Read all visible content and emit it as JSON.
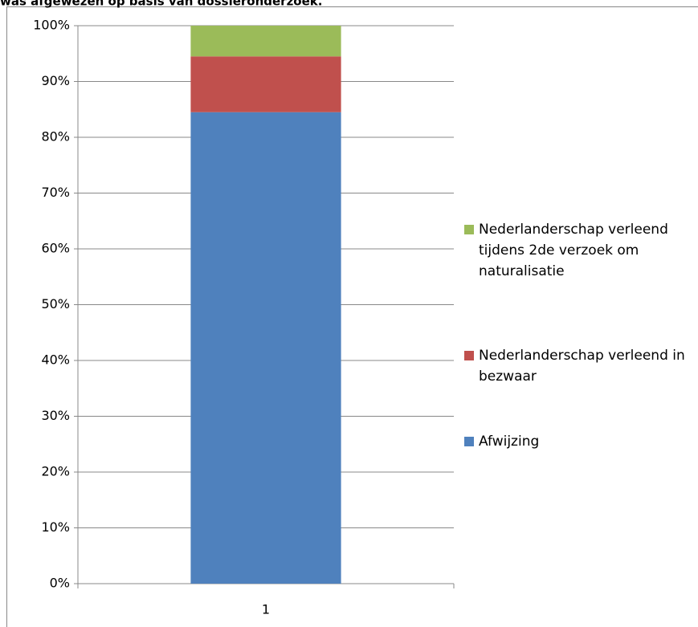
{
  "chart_data": {
    "type": "stacked_bar",
    "title": "was afgewezen op basis van dossieronderzoek.",
    "categories": [
      "1"
    ],
    "series": [
      {
        "name": "Afwijzing",
        "color": "#4f81bd",
        "values": [
          84.5
        ]
      },
      {
        "name": "Nederlanderschap verleend in bezwaar",
        "color": "#c0504d",
        "values": [
          10
        ]
      },
      {
        "name": "Nederlanderschap verleend tijdens 2de verzoek om naturalisatie",
        "color": "#9bbb59",
        "values": [
          5.5
        ]
      }
    ],
    "ylim": [
      0,
      100
    ],
    "yticks": [
      {
        "value": 0,
        "label": "0%"
      },
      {
        "value": 10,
        "label": "10%"
      },
      {
        "value": 20,
        "label": "20%"
      },
      {
        "value": 30,
        "label": "30%"
      },
      {
        "value": 40,
        "label": "40%"
      },
      {
        "value": 50,
        "label": "50%"
      },
      {
        "value": 60,
        "label": "60%"
      },
      {
        "value": 70,
        "label": "70%"
      },
      {
        "value": 80,
        "label": "80%"
      },
      {
        "value": 90,
        "label": "90%"
      },
      {
        "value": 100,
        "label": "100%"
      }
    ],
    "grid": true,
    "legend": "right"
  }
}
